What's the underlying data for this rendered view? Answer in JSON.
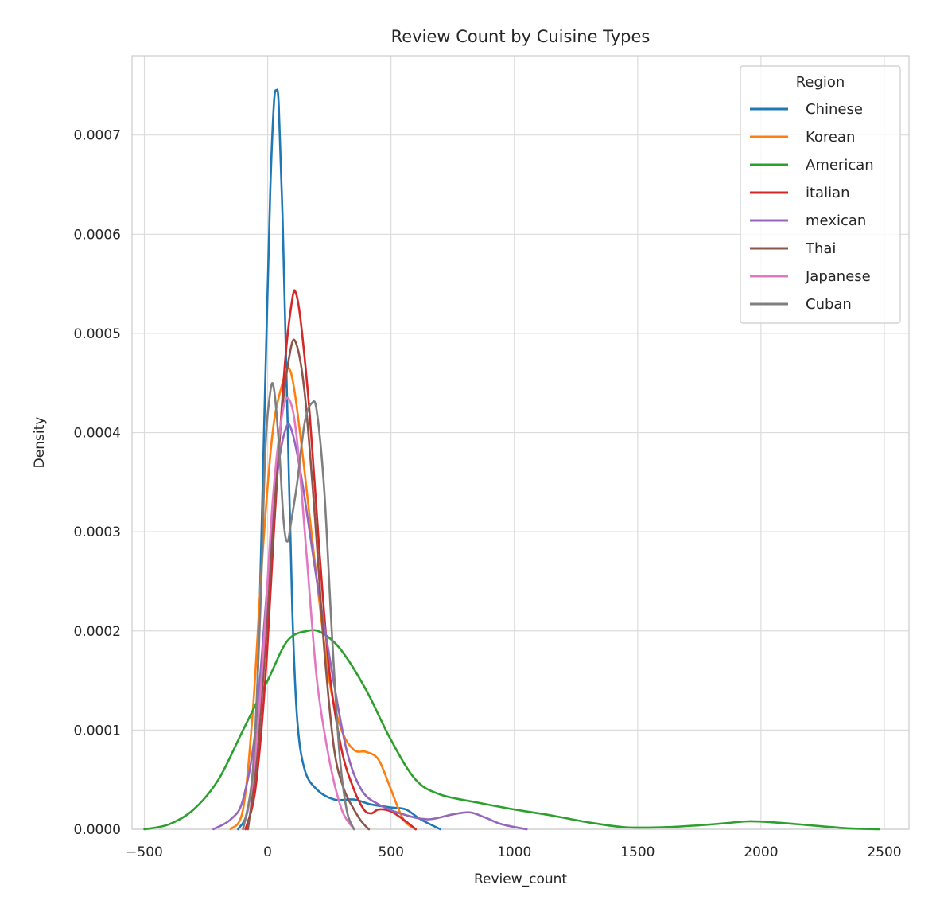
{
  "chart_data": {
    "type": "line",
    "title": "Review Count by Cuisine Types",
    "xlabel": "Review_count",
    "ylabel": "Density",
    "xlim": [
      -550,
      2600
    ],
    "ylim": [
      0,
      0.00078
    ],
    "xticks": [
      -500,
      0,
      500,
      1000,
      1500,
      2000,
      2500
    ],
    "xtick_labels": [
      "−500",
      "0",
      "500",
      "1000",
      "1500",
      "2000",
      "2500"
    ],
    "yticks": [
      0,
      0.0001,
      0.0002,
      0.0003,
      0.0004,
      0.0005,
      0.0006,
      0.0007
    ],
    "ytick_labels": [
      "0.0000",
      "0.0001",
      "0.0002",
      "0.0003",
      "0.0004",
      "0.0005",
      "0.0006",
      "0.0007"
    ],
    "grid": true,
    "legend": {
      "title": "Region",
      "placement": "top-right"
    },
    "series": [
      {
        "name": "Chinese",
        "color": "#1f77b4",
        "points": [
          [
            -120,
            0
          ],
          [
            -80,
            2e-05
          ],
          [
            -50,
            9e-05
          ],
          [
            -30,
            0.00025
          ],
          [
            -10,
            0.00045
          ],
          [
            10,
            0.00064
          ],
          [
            25,
            0.00073
          ],
          [
            35,
            0.000745
          ],
          [
            45,
            0.00073
          ],
          [
            60,
            0.00062
          ],
          [
            80,
            0.00042
          ],
          [
            100,
            0.00022
          ],
          [
            120,
            0.00011
          ],
          [
            150,
            6e-05
          ],
          [
            200,
            4e-05
          ],
          [
            270,
            3e-05
          ],
          [
            350,
            3e-05
          ],
          [
            420,
            2.5e-05
          ],
          [
            500,
            2.2e-05
          ],
          [
            560,
            2e-05
          ],
          [
            620,
            1e-05
          ],
          [
            700,
            0
          ]
        ]
      },
      {
        "name": "Korean",
        "color": "#ff7f0e",
        "points": [
          [
            -150,
            0
          ],
          [
            -100,
            2e-05
          ],
          [
            -60,
            0.00012
          ],
          [
            -20,
            0.00028
          ],
          [
            20,
            0.0004
          ],
          [
            60,
            0.00045
          ],
          [
            85,
            0.000465
          ],
          [
            110,
            0.00044
          ],
          [
            150,
            0.00036
          ],
          [
            200,
            0.00025
          ],
          [
            250,
            0.00015
          ],
          [
            300,
            0.0001
          ],
          [
            350,
            8e-05
          ],
          [
            400,
            7.8e-05
          ],
          [
            450,
            7e-05
          ],
          [
            500,
            4e-05
          ],
          [
            550,
            1e-05
          ],
          [
            600,
            0
          ]
        ]
      },
      {
        "name": "American",
        "color": "#2ca02c",
        "points": [
          [
            -500,
            0
          ],
          [
            -400,
            5e-06
          ],
          [
            -300,
            2e-05
          ],
          [
            -200,
            5e-05
          ],
          [
            -100,
            0.0001
          ],
          [
            0,
            0.00015
          ],
          [
            80,
            0.00019
          ],
          [
            160,
            0.0002
          ],
          [
            220,
            0.000198
          ],
          [
            300,
            0.00018
          ],
          [
            400,
            0.00014
          ],
          [
            500,
            9e-05
          ],
          [
            600,
            5e-05
          ],
          [
            700,
            3.5e-05
          ],
          [
            850,
            2.7e-05
          ],
          [
            1000,
            2e-05
          ],
          [
            1150,
            1.4e-05
          ],
          [
            1300,
            7e-06
          ],
          [
            1450,
            2e-06
          ],
          [
            1600,
            2e-06
          ],
          [
            1750,
            4e-06
          ],
          [
            1850,
            6e-06
          ],
          [
            1950,
            8e-06
          ],
          [
            2050,
            7e-06
          ],
          [
            2200,
            4e-06
          ],
          [
            2350,
            1e-06
          ],
          [
            2480,
            0
          ]
        ]
      },
      {
        "name": "italian",
        "color": "#d62728",
        "points": [
          [
            -90,
            0
          ],
          [
            -50,
            4e-05
          ],
          [
            -10,
            0.00015
          ],
          [
            30,
            0.00032
          ],
          [
            70,
            0.00047
          ],
          [
            100,
            0.000535
          ],
          [
            115,
            0.00054
          ],
          [
            135,
            0.00051
          ],
          [
            170,
            0.00042
          ],
          [
            210,
            0.00028
          ],
          [
            250,
            0.00016
          ],
          [
            300,
            8e-05
          ],
          [
            350,
            4e-05
          ],
          [
            390,
            2e-05
          ],
          [
            420,
            1.6e-05
          ],
          [
            450,
            2e-05
          ],
          [
            500,
            1.8e-05
          ],
          [
            560,
            8e-06
          ],
          [
            600,
            0
          ]
        ]
      },
      {
        "name": "mexican",
        "color": "#9467bd",
        "points": [
          [
            -220,
            0
          ],
          [
            -150,
            1e-05
          ],
          [
            -100,
            3e-05
          ],
          [
            -50,
            0.0001
          ],
          [
            0,
            0.00025
          ],
          [
            40,
            0.00036
          ],
          [
            75,
            0.000405
          ],
          [
            100,
            0.0004
          ],
          [
            140,
            0.00035
          ],
          [
            200,
            0.00025
          ],
          [
            260,
            0.00016
          ],
          [
            320,
            8e-05
          ],
          [
            380,
            4e-05
          ],
          [
            450,
            2.5e-05
          ],
          [
            550,
            1.5e-05
          ],
          [
            650,
            1e-05
          ],
          [
            750,
            1.5e-05
          ],
          [
            820,
            1.7e-05
          ],
          [
            880,
            1.2e-05
          ],
          [
            950,
            5e-06
          ],
          [
            1050,
            0
          ]
        ]
      },
      {
        "name": "Thai",
        "color": "#8c564b",
        "points": [
          [
            -80,
            0
          ],
          [
            -40,
            8e-05
          ],
          [
            0,
            0.00022
          ],
          [
            50,
            0.0004
          ],
          [
            90,
            0.00048
          ],
          [
            115,
            0.00049
          ],
          [
            150,
            0.00044
          ],
          [
            190,
            0.00032
          ],
          [
            230,
            0.00018
          ],
          [
            270,
            8e-05
          ],
          [
            310,
            4e-05
          ],
          [
            350,
            2e-05
          ],
          [
            380,
            8e-06
          ],
          [
            410,
            0
          ]
        ]
      },
      {
        "name": "Japanese",
        "color": "#e377c2",
        "points": [
          [
            -100,
            0
          ],
          [
            -60,
            5e-05
          ],
          [
            -20,
            0.00017
          ],
          [
            20,
            0.00033
          ],
          [
            60,
            0.00042
          ],
          [
            90,
            0.000432
          ],
          [
            120,
            0.00039
          ],
          [
            160,
            0.00027
          ],
          [
            200,
            0.00015
          ],
          [
            250,
            7e-05
          ],
          [
            300,
            2e-05
          ],
          [
            350,
            0
          ]
        ]
      },
      {
        "name": "Cuban",
        "color": "#7f7f7f",
        "points": [
          [
            -100,
            0
          ],
          [
            -60,
            6e-05
          ],
          [
            -30,
            0.00022
          ],
          [
            -10,
            0.00038
          ],
          [
            10,
            0.00044
          ],
          [
            25,
            0.000445
          ],
          [
            45,
            0.00039
          ],
          [
            65,
            0.00031
          ],
          [
            80,
            0.00029
          ],
          [
            95,
            0.00031
          ],
          [
            120,
            0.00035
          ],
          [
            150,
            0.00041
          ],
          [
            180,
            0.00043
          ],
          [
            200,
            0.00042
          ],
          [
            230,
            0.00034
          ],
          [
            260,
            0.0002
          ],
          [
            290,
            8e-05
          ],
          [
            320,
            2e-05
          ],
          [
            350,
            0
          ]
        ]
      }
    ]
  }
}
